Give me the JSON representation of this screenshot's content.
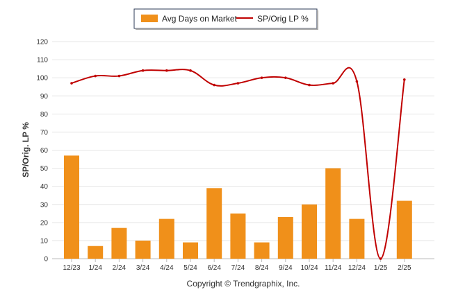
{
  "chart_data": {
    "type": "bar",
    "categories": [
      "12/23",
      "1/24",
      "2/24",
      "3/24",
      "4/24",
      "5/24",
      "6/24",
      "7/24",
      "8/24",
      "9/24",
      "10/24",
      "11/24",
      "12/24",
      "1/25",
      "2/25"
    ],
    "series": [
      {
        "name": "Avg Days on Market",
        "type": "bar",
        "color": "#F0901A",
        "values": [
          57,
          7,
          17,
          10,
          22,
          9,
          39,
          25,
          9,
          23,
          30,
          50,
          22,
          0,
          32
        ]
      },
      {
        "name": "SP/Orig LP %",
        "type": "line",
        "color": "#C00000",
        "values": [
          97,
          101,
          101,
          104,
          104,
          104,
          96,
          97,
          100,
          100,
          96,
          97,
          98,
          0,
          99
        ]
      }
    ],
    "ylabel": "SP/Orig. LP %",
    "ylim": [
      0,
      120
    ],
    "yticks": [
      0,
      10,
      20,
      30,
      40,
      50,
      60,
      70,
      80,
      90,
      100,
      110,
      120
    ],
    "grid": true,
    "legend_position": "top-center",
    "credit": "Copyright © Trendgraphix, Inc."
  }
}
